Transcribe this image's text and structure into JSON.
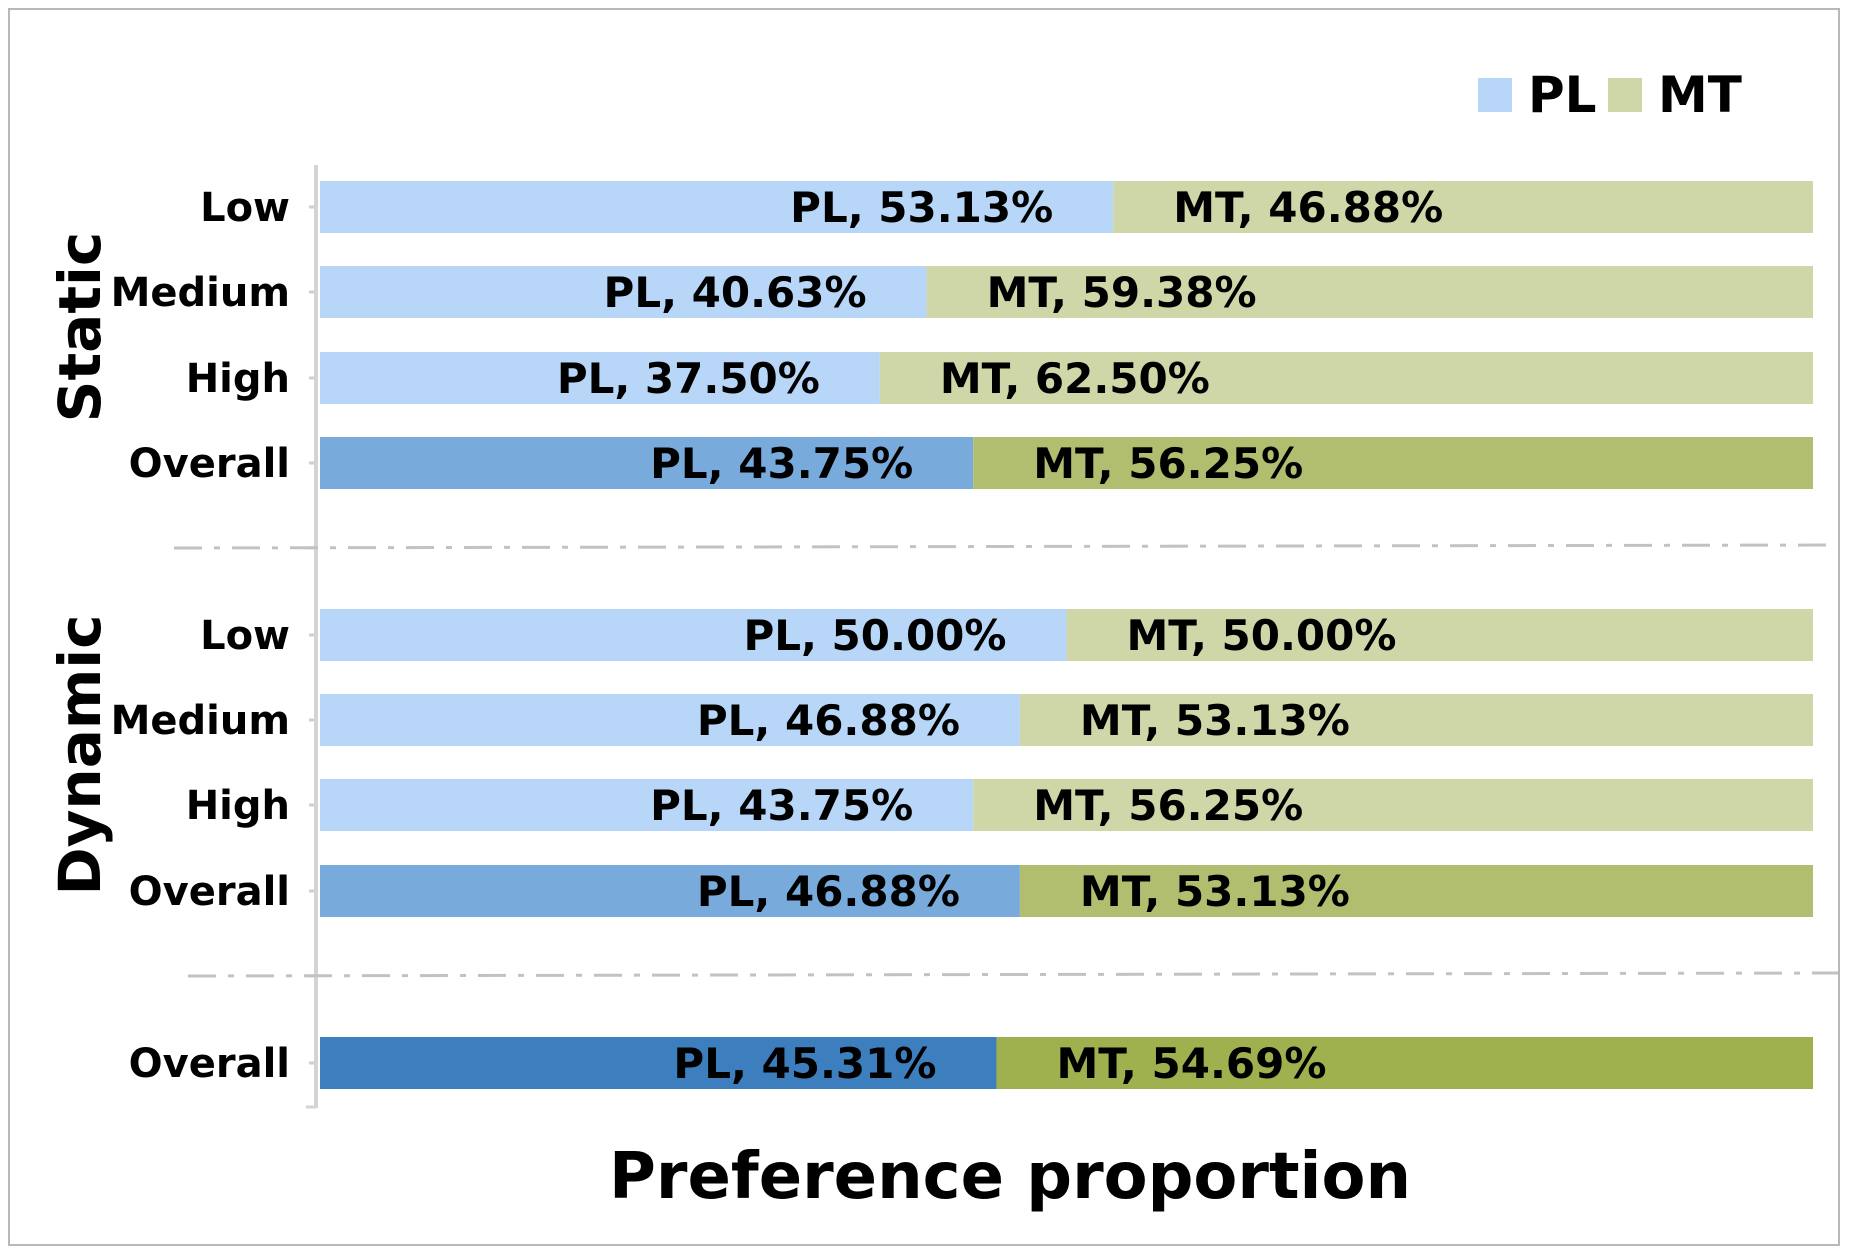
{
  "chart_data": {
    "type": "bar",
    "orientation": "horizontal",
    "stacked": true,
    "xlabel": "Preference proportion",
    "ylabel": "",
    "xlim": [
      0,
      100
    ],
    "unit": "%",
    "legend_position": "top-right",
    "grid": false,
    "legend": [
      {
        "name": "PL",
        "color": "#b8d7f8"
      },
      {
        "name": "MT",
        "color": "#cfd7a8"
      }
    ],
    "groups": [
      {
        "label": "Static",
        "rows": [
          0,
          1,
          2,
          3
        ]
      },
      {
        "label": "Dynamic",
        "rows": [
          4,
          5,
          6,
          7
        ]
      }
    ],
    "categories": [
      "Low",
      "Medium",
      "High",
      "Overall",
      "Low",
      "Medium",
      "High",
      "Overall",
      "Overall"
    ],
    "series": [
      {
        "name": "PL",
        "values": [
          53.13,
          40.63,
          37.5,
          43.75,
          50.0,
          46.88,
          43.75,
          46.88,
          45.31
        ],
        "labels": [
          "PL, 53.13%",
          "PL, 40.63%",
          "PL, 37.50%",
          "PL, 43.75%",
          "PL, 50.00%",
          "PL, 46.88%",
          "PL, 43.75%",
          "PL, 46.88%",
          "PL, 45.31%"
        ],
        "colors": [
          "#b8d7f8",
          "#b8d7f8",
          "#b8d7f8",
          "#78abdc",
          "#b8d7f8",
          "#b8d7f8",
          "#b8d7f8",
          "#78abdc",
          "#3d7fbe"
        ]
      },
      {
        "name": "MT",
        "values": [
          46.88,
          59.38,
          62.5,
          56.25,
          50.0,
          53.13,
          56.25,
          53.13,
          54.69
        ],
        "labels": [
          "MT, 46.88%",
          "MT, 59.38%",
          "MT, 62.50%",
          "MT, 56.25%",
          "MT, 50.00%",
          "MT, 53.13%",
          "MT, 56.25%",
          "MT, 53.13%",
          "MT, 54.69%"
        ],
        "colors": [
          "#cfd7a8",
          "#cfd7a8",
          "#cfd7a8",
          "#b1be70",
          "#cfd7a8",
          "#cfd7a8",
          "#cfd7a8",
          "#b1be70",
          "#9fb04f"
        ]
      }
    ]
  }
}
